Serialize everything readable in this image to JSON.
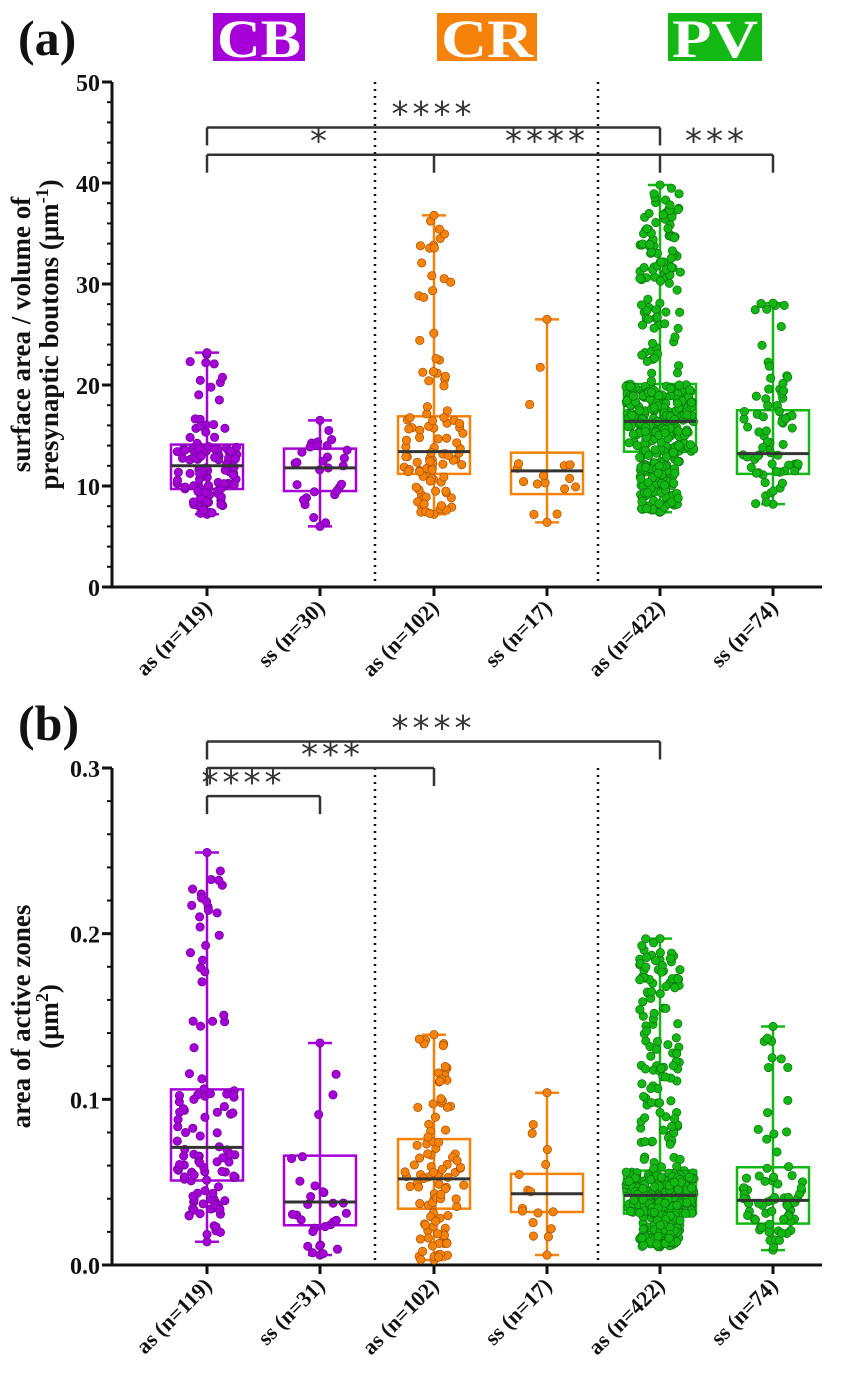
{
  "groups": [
    {
      "name": "CB",
      "color": "#a600d8",
      "dark": "#6a0090"
    },
    {
      "name": "CR",
      "color": "#f5820a",
      "dark": "#a85000"
    },
    {
      "name": "PV",
      "color": "#14b814",
      "dark": "#0a700a"
    }
  ],
  "chart_data": [
    {
      "type": "box",
      "panel_label": "(a)",
      "ylabel_lines": [
        "surface area / volume of",
        "presynaptic boutons (μm",
        "-1",
        ")"
      ],
      "ylim": [
        0,
        50
      ],
      "yticks": [
        0,
        10,
        20,
        30,
        40,
        50
      ],
      "categories": [
        "as (n=119)",
        "ss (n=30)",
        "as (n=102)",
        "ss (n=17)",
        "as (n=422)",
        "ss (n=74)"
      ],
      "category_group": [
        0,
        0,
        1,
        1,
        2,
        2
      ],
      "n": [
        119,
        30,
        102,
        17,
        422,
        74
      ],
      "boxes": [
        {
          "min": 7.2,
          "q1": 9.7,
          "median": 12.0,
          "q3": 14.1,
          "max": 23.2
        },
        {
          "min": 6.0,
          "q1": 9.5,
          "median": 11.8,
          "q3": 13.7,
          "max": 16.5
        },
        {
          "min": 7.2,
          "q1": 11.2,
          "median": 13.4,
          "q3": 16.9,
          "max": 36.8
        },
        {
          "min": 6.4,
          "q1": 9.2,
          "median": 11.5,
          "q3": 13.3,
          "max": 26.5
        },
        {
          "min": 7.4,
          "q1": 13.4,
          "median": 16.4,
          "q3": 20.1,
          "max": 39.8
        },
        {
          "min": 8.2,
          "q1": 11.2,
          "median": 13.2,
          "q3": 17.5,
          "max": 28.1
        }
      ],
      "significance": [
        {
          "level": 45.5,
          "ticks": [
            0,
            4
          ],
          "labels": [
            {
              "between": [
                0,
                4
              ],
              "text": "****"
            }
          ]
        },
        {
          "level": 42.8,
          "ticks": [
            0,
            2,
            4,
            5
          ],
          "labels": [
            {
              "between": [
                0,
                2
              ],
              "text": "*"
            },
            {
              "between": [
                2,
                4
              ],
              "text": "****"
            },
            {
              "between": [
                4,
                5
              ],
              "text": "***"
            }
          ]
        }
      ]
    },
    {
      "type": "box",
      "panel_label": "(b)",
      "ylabel_lines": [
        "area of  active zones",
        "(μm",
        "2",
        ")"
      ],
      "ylim": [
        0,
        0.3
      ],
      "yticks": [
        0.0,
        0.1,
        0.2,
        0.3
      ],
      "categories": [
        "as (n=119)",
        "ss (n=31)",
        "as (n=102)",
        "ss (n=17)",
        "as (n=422)",
        "ss (n=74)"
      ],
      "category_group": [
        0,
        0,
        1,
        1,
        2,
        2
      ],
      "n": [
        119,
        31,
        102,
        17,
        422,
        74
      ],
      "boxes": [
        {
          "min": 0.014,
          "q1": 0.051,
          "median": 0.071,
          "q3": 0.106,
          "max": 0.249
        },
        {
          "min": 0.006,
          "q1": 0.024,
          "median": 0.038,
          "q3": 0.066,
          "max": 0.134
        },
        {
          "min": 0.003,
          "q1": 0.034,
          "median": 0.052,
          "q3": 0.076,
          "max": 0.139
        },
        {
          "min": 0.006,
          "q1": 0.032,
          "median": 0.043,
          "q3": 0.055,
          "max": 0.104
        },
        {
          "min": 0.011,
          "q1": 0.031,
          "median": 0.042,
          "q3": 0.057,
          "max": 0.197
        },
        {
          "min": 0.009,
          "q1": 0.025,
          "median": 0.039,
          "q3": 0.059,
          "max": 0.144
        }
      ],
      "significance": [
        {
          "level": 0.316,
          "ticks": [
            0,
            4
          ],
          "labels": [
            {
              "between": [
                0,
                4
              ],
              "text": "****"
            }
          ]
        },
        {
          "level": 0.3,
          "ticks": [
            0,
            2
          ],
          "labels": [
            {
              "between": [
                0,
                2
              ],
              "text": "***"
            }
          ]
        },
        {
          "level": 0.283,
          "ticks": [
            0,
            1
          ],
          "labels": [
            {
              "between": [
                0,
                1
              ],
              "text": "****"
            }
          ]
        }
      ]
    }
  ]
}
